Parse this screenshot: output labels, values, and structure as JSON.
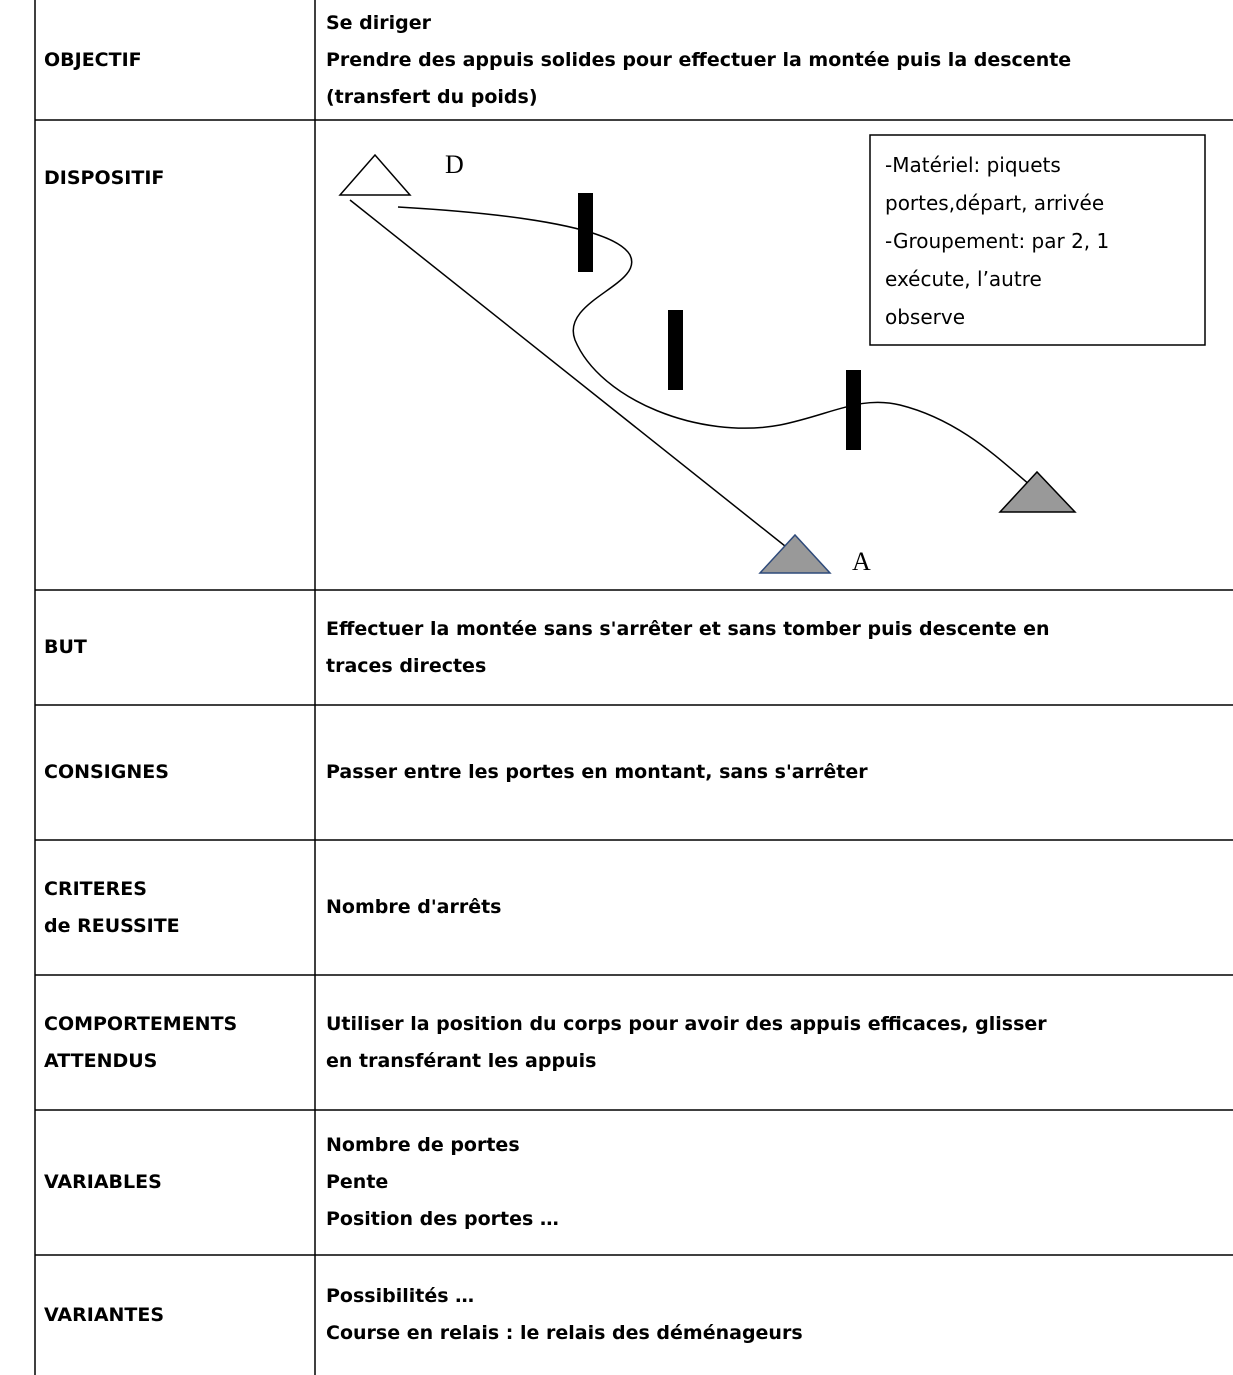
{
  "table": {
    "rows": [
      {
        "label": [
          "OBJECTIF"
        ],
        "content": [
          "Se diriger",
          "Prendre des appuis solides pour effectuer la montée puis la descente",
          "(transfert du poids)"
        ]
      },
      {
        "label": [
          "DISPOSITIF"
        ],
        "diagram": {
          "start_label": "D",
          "end_label": "A",
          "notes": [
            "-Matériel: piquets",
            "portes,départ, arrivée",
            "-Groupement: par 2, 1",
            "exécute, l’autre",
            "observe"
          ]
        }
      },
      {
        "label": [
          "BUT"
        ],
        "content": [
          "Effectuer la montée sans s'arrêter et sans tomber puis descente en",
          "traces directes"
        ]
      },
      {
        "label": [
          "CONSIGNES"
        ],
        "content": [
          "Passer entre les portes en montant, sans s'arrêter"
        ]
      },
      {
        "label": [
          "CRITERES",
          "de REUSSITE"
        ],
        "content": [
          "Nombre d'arrêts"
        ]
      },
      {
        "label": [
          "COMPORTEMENTS",
          "ATTENDUS"
        ],
        "content": [
          "Utiliser la position du corps pour avoir des appuis efficaces, glisser",
          "en transférant les appuis"
        ]
      },
      {
        "label": [
          "VARIABLES"
        ],
        "content": [
          "Nombre de portes",
          "Pente",
          "Position des portes …"
        ]
      },
      {
        "label": [
          "VARIANTES"
        ],
        "content": [
          "Possibilités …",
          "Course en relais : le relais des déménageurs"
        ]
      }
    ]
  }
}
